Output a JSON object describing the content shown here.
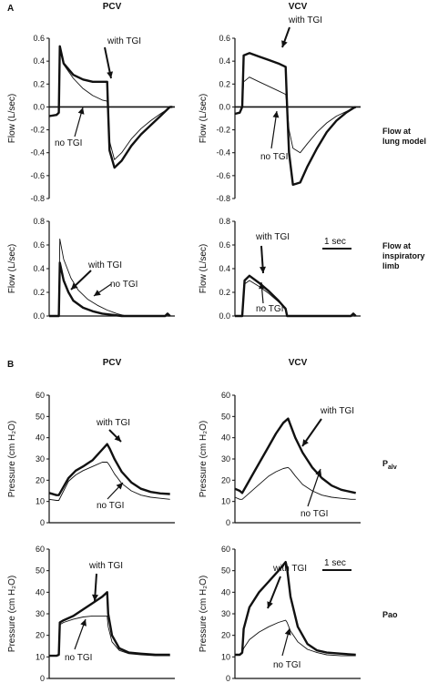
{
  "panel_letters": [
    "A",
    "B"
  ],
  "scale_bar_label": "1 sec",
  "chart_data": [
    {
      "id": "a-pcv-lung",
      "type": "line",
      "title": "PCV",
      "ylabel": "Flow (L/sec)",
      "ylim": [
        -0.8,
        0.6
      ],
      "yticks": [
        "0.6",
        "0.4",
        "0.2",
        "0.0",
        "-0.2",
        "-0.4",
        "-0.6",
        "-0.8"
      ],
      "xlim": [
        0,
        2.6
      ],
      "grid": false,
      "zero_line": true,
      "series": [
        {
          "name": "with TGI",
          "thick": true,
          "x": [
            0,
            0.15,
            0.2,
            0.22,
            0.3,
            0.5,
            0.7,
            0.9,
            1.1,
            1.2,
            1.22,
            1.25,
            1.35,
            1.5,
            1.7,
            1.9,
            2.1,
            2.3,
            2.45,
            2.5,
            2.55
          ],
          "y": [
            -0.08,
            -0.07,
            -0.05,
            0.53,
            0.38,
            0.28,
            0.24,
            0.22,
            0.22,
            0.22,
            -0.05,
            -0.38,
            -0.53,
            -0.47,
            -0.34,
            -0.24,
            -0.16,
            -0.08,
            -0.02,
            0.0,
            0.0
          ]
        },
        {
          "name": "no TGI",
          "thick": false,
          "x": [
            0,
            0.15,
            0.2,
            0.22,
            0.3,
            0.5,
            0.7,
            0.9,
            1.1,
            1.2,
            1.22,
            1.25,
            1.35,
            1.5,
            1.7,
            1.9,
            2.1,
            2.3,
            2.45,
            2.5,
            2.55
          ],
          "y": [
            -0.08,
            -0.07,
            -0.05,
            0.52,
            0.37,
            0.25,
            0.16,
            0.1,
            0.06,
            0.05,
            -0.05,
            -0.3,
            -0.46,
            -0.4,
            -0.28,
            -0.19,
            -0.12,
            -0.06,
            -0.02,
            0.0,
            0.0
          ]
        }
      ],
      "annotations": [
        {
          "text": "with TGI",
          "target": "with TGI"
        },
        {
          "text": "no TGI",
          "target": "no TGI"
        }
      ]
    },
    {
      "id": "a-vcv-lung",
      "type": "line",
      "title": "VCV",
      "ylabel": "Flow (L/sec)",
      "ylim": [
        -0.8,
        0.6
      ],
      "yticks": [
        "0.6",
        "0.4",
        "0.2",
        "0.0",
        "-0.2",
        "-0.4",
        "-0.6",
        "-0.8"
      ],
      "xlim": [
        0,
        2.6
      ],
      "grid": false,
      "zero_line": true,
      "series": [
        {
          "name": "with TGI",
          "thick": true,
          "x": [
            0,
            0.1,
            0.15,
            0.18,
            0.3,
            0.5,
            0.7,
            0.9,
            1.05,
            1.08,
            1.12,
            1.2,
            1.35,
            1.5,
            1.7,
            1.9,
            2.1,
            2.3,
            2.45,
            2.5
          ],
          "y": [
            -0.06,
            -0.05,
            0.0,
            0.45,
            0.47,
            0.44,
            0.41,
            0.38,
            0.35,
            0.0,
            -0.4,
            -0.68,
            -0.66,
            -0.52,
            -0.36,
            -0.22,
            -0.12,
            -0.05,
            -0.01,
            0.0
          ]
        },
        {
          "name": "no TGI",
          "thick": false,
          "x": [
            0,
            0.1,
            0.15,
            0.18,
            0.3,
            0.5,
            0.7,
            0.9,
            1.05,
            1.08,
            1.12,
            1.2,
            1.35,
            1.5,
            1.7,
            1.9,
            2.1,
            2.3,
            2.45,
            2.5
          ],
          "y": [
            -0.06,
            -0.05,
            0.0,
            0.22,
            0.26,
            0.22,
            0.18,
            0.14,
            0.11,
            0.0,
            -0.2,
            -0.36,
            -0.4,
            -0.32,
            -0.22,
            -0.14,
            -0.08,
            -0.04,
            -0.01,
            0.0
          ]
        }
      ],
      "annotations": [
        {
          "text": "with TGI",
          "target": "with TGI"
        },
        {
          "text": "no TGI",
          "target": "no TGI"
        }
      ]
    },
    {
      "id": "a-pcv-insp",
      "type": "line",
      "title": "",
      "ylabel": "Flow (L/sec)",
      "ylim": [
        0,
        0.8
      ],
      "yticks": [
        "0.8",
        "0.6",
        "0.4",
        "0.2",
        "0.0"
      ],
      "xlim": [
        0,
        2.6
      ],
      "grid": false,
      "zero_line": false,
      "series": [
        {
          "name": "with TGI",
          "thick": true,
          "x": [
            0,
            0.15,
            0.2,
            0.22,
            0.3,
            0.4,
            0.5,
            0.7,
            0.9,
            1.1,
            1.3,
            1.5,
            2.4,
            2.45,
            2.5
          ],
          "y": [
            0.0,
            0.0,
            0.0,
            0.45,
            0.3,
            0.2,
            0.13,
            0.07,
            0.04,
            0.02,
            0.01,
            0.0,
            0.0,
            0.02,
            0.0
          ]
        },
        {
          "name": "no TGI",
          "thick": false,
          "x": [
            0,
            0.15,
            0.2,
            0.22,
            0.3,
            0.45,
            0.6,
            0.8,
            1.0,
            1.2,
            1.4,
            1.6,
            2.4,
            2.45,
            2.5
          ],
          "y": [
            0.0,
            0.0,
            0.0,
            0.65,
            0.48,
            0.32,
            0.22,
            0.14,
            0.09,
            0.05,
            0.02,
            0.0,
            0.0,
            0.02,
            0.0
          ]
        }
      ],
      "annotations": [
        {
          "text": "with TGI",
          "target": "with TGI"
        },
        {
          "text": "no TGI",
          "target": "no TGI"
        }
      ]
    },
    {
      "id": "a-vcv-insp",
      "type": "line",
      "title": "",
      "ylabel": "Flow (L/sec)",
      "ylim": [
        0,
        0.8
      ],
      "yticks": [
        "0.8",
        "0.6",
        "0.4",
        "0.2",
        "0.0"
      ],
      "xlim": [
        0,
        2.6
      ],
      "grid": false,
      "zero_line": false,
      "series": [
        {
          "name": "with TGI",
          "thick": true,
          "x": [
            0,
            0.1,
            0.15,
            0.2,
            0.3,
            0.5,
            0.7,
            0.9,
            1.05,
            1.08,
            1.3,
            2.4,
            2.45,
            2.5
          ],
          "y": [
            0.0,
            0.0,
            0.0,
            0.3,
            0.34,
            0.28,
            0.21,
            0.13,
            0.06,
            0.0,
            0.0,
            0.0,
            0.02,
            0.0
          ]
        },
        {
          "name": "no TGI",
          "thick": false,
          "x": [
            0,
            0.1,
            0.15,
            0.2,
            0.3,
            0.5,
            0.7,
            0.9,
            1.05,
            1.08,
            1.3,
            2.4,
            2.45,
            2.5
          ],
          "y": [
            0.0,
            0.0,
            0.0,
            0.27,
            0.3,
            0.25,
            0.19,
            0.12,
            0.07,
            0.0,
            0.0,
            0.0,
            0.02,
            0.0
          ]
        }
      ],
      "annotations": [
        {
          "text": "with TGI",
          "target": "with TGI"
        },
        {
          "text": "no TGI",
          "target": "no TGI"
        }
      ]
    },
    {
      "id": "b-pcv-palv",
      "type": "line",
      "title": "PCV",
      "ylabel": "Pressure (cm H₂O)",
      "ylim": [
        0,
        60
      ],
      "yticks": [
        "60",
        "50",
        "40",
        "30",
        "20",
        "10",
        "0"
      ],
      "xlim": [
        0,
        2.6
      ],
      "grid": false,
      "zero_line": false,
      "series": [
        {
          "name": "with TGI",
          "thick": true,
          "x": [
            0,
            0.15,
            0.2,
            0.3,
            0.4,
            0.55,
            0.7,
            0.9,
            1.1,
            1.2,
            1.25,
            1.35,
            1.5,
            1.7,
            1.9,
            2.1,
            2.3,
            2.5
          ],
          "y": [
            14,
            13,
            13,
            17,
            21,
            24.5,
            26.5,
            29.5,
            34.5,
            37,
            35,
            30,
            24,
            19,
            16,
            14.5,
            13.8,
            13.5
          ]
        },
        {
          "name": "no TGI",
          "thick": false,
          "x": [
            0,
            0.15,
            0.2,
            0.3,
            0.4,
            0.55,
            0.7,
            0.9,
            1.1,
            1.2,
            1.25,
            1.35,
            1.5,
            1.7,
            1.9,
            2.1,
            2.3,
            2.5
          ],
          "y": [
            11,
            10.5,
            10.5,
            15,
            19.5,
            22.5,
            24.5,
            26.5,
            28.5,
            28.5,
            27,
            23,
            18.5,
            15,
            13,
            12,
            11.5,
            11
          ]
        }
      ],
      "annotations": [
        {
          "text": "with TGI",
          "target": "with TGI"
        },
        {
          "text": "no TGI",
          "target": "no TGI"
        }
      ]
    },
    {
      "id": "b-vcv-palv",
      "type": "line",
      "title": "VCV",
      "ylabel": "Pressure (cm H₂O)",
      "ylim": [
        0,
        60
      ],
      "yticks": [
        "60",
        "50",
        "40",
        "30",
        "20",
        "10",
        "0"
      ],
      "xlim": [
        0,
        2.6
      ],
      "grid": false,
      "zero_line": false,
      "series": [
        {
          "name": "with TGI",
          "thick": true,
          "x": [
            0,
            0.1,
            0.15,
            0.25,
            0.4,
            0.55,
            0.7,
            0.85,
            1.0,
            1.1,
            1.15,
            1.25,
            1.4,
            1.6,
            1.8,
            2.0,
            2.2,
            2.4,
            2.5
          ],
          "y": [
            16,
            15,
            14,
            18,
            24,
            30,
            36,
            42,
            47,
            49,
            46,
            40,
            33,
            26,
            21,
            17.5,
            15.5,
            14.5,
            14
          ]
        },
        {
          "name": "no TGI",
          "thick": false,
          "x": [
            0,
            0.1,
            0.15,
            0.25,
            0.4,
            0.55,
            0.7,
            0.85,
            1.0,
            1.1,
            1.15,
            1.25,
            1.4,
            1.6,
            1.8,
            2.0,
            2.2,
            2.4,
            2.5
          ],
          "y": [
            12,
            11,
            11,
            13,
            16,
            19,
            22,
            24,
            25.5,
            26,
            25,
            22,
            18,
            15,
            13,
            12,
            11.5,
            11,
            11
          ]
        }
      ],
      "annotations": [
        {
          "text": "with TGI",
          "target": "with TGI"
        },
        {
          "text": "no TGI",
          "target": "no TGI"
        }
      ]
    },
    {
      "id": "b-pcv-pao",
      "type": "line",
      "title": "",
      "ylabel": "Pressure (cm H₂O)",
      "ylim": [
        0,
        60
      ],
      "yticks": [
        "60",
        "50",
        "40",
        "30",
        "20",
        "10",
        "0"
      ],
      "xlim": [
        0,
        2.6
      ],
      "grid": false,
      "zero_line": false,
      "series": [
        {
          "name": "with TGI",
          "thick": true,
          "x": [
            0,
            0.15,
            0.2,
            0.22,
            0.3,
            0.5,
            0.7,
            0.9,
            1.1,
            1.2,
            1.22,
            1.3,
            1.45,
            1.65,
            1.9,
            2.2,
            2.5
          ],
          "y": [
            10.5,
            10.5,
            11,
            26,
            27,
            29,
            32,
            35,
            38,
            40,
            30,
            20,
            14,
            12,
            11.5,
            11,
            11
          ]
        },
        {
          "name": "no TGI",
          "thick": false,
          "x": [
            0,
            0.15,
            0.2,
            0.22,
            0.3,
            0.5,
            0.7,
            0.9,
            1.1,
            1.2,
            1.22,
            1.3,
            1.45,
            1.65,
            1.9,
            2.2,
            2.5
          ],
          "y": [
            10.5,
            10.5,
            11,
            25,
            26,
            27.5,
            28.5,
            29,
            29,
            29,
            24,
            17,
            13,
            11.5,
            11,
            10.5,
            10.5
          ]
        }
      ],
      "annotations": [
        {
          "text": "with TGI",
          "target": "with TGI"
        },
        {
          "text": "no TGI",
          "target": "no TGI"
        }
      ]
    },
    {
      "id": "b-vcv-pao",
      "type": "line",
      "title": "",
      "ylabel": "Pressure (cm H₂O)",
      "ylim": [
        0,
        60
      ],
      "yticks": [
        "60",
        "50",
        "40",
        "30",
        "20",
        "10",
        "0"
      ],
      "xlim": [
        0,
        2.6
      ],
      "grid": false,
      "zero_line": false,
      "series": [
        {
          "name": "with TGI",
          "thick": true,
          "x": [
            0,
            0.1,
            0.15,
            0.18,
            0.3,
            0.5,
            0.7,
            0.9,
            1.05,
            1.08,
            1.15,
            1.3,
            1.5,
            1.7,
            1.9,
            2.2,
            2.5
          ],
          "y": [
            11,
            11,
            12,
            23,
            33,
            40,
            45,
            50,
            54,
            51,
            38,
            24,
            16,
            13,
            12,
            11.5,
            11
          ]
        },
        {
          "name": "no TGI",
          "thick": false,
          "x": [
            0,
            0.1,
            0.15,
            0.18,
            0.3,
            0.5,
            0.7,
            0.9,
            1.05,
            1.08,
            1.15,
            1.3,
            1.5,
            1.7,
            1.9,
            2.2,
            2.5
          ],
          "y": [
            11,
            11,
            11.5,
            14,
            18,
            21.5,
            24,
            26,
            27,
            26,
            22,
            17,
            13.5,
            12,
            11,
            10.5,
            10.5
          ]
        }
      ],
      "annotations": [
        {
          "text": "with TGI",
          "target": "with TGI"
        },
        {
          "text": "no TGI",
          "target": "no TGI"
        }
      ]
    }
  ],
  "row_labels": [
    {
      "lines": [
        "Flow at",
        "lung model"
      ]
    },
    {
      "lines": [
        "Flow at",
        "inspiratory",
        "limb"
      ]
    },
    {
      "lines": [
        "P",
        "alv"
      ]
    },
    {
      "lines": [
        "Pao"
      ]
    }
  ]
}
